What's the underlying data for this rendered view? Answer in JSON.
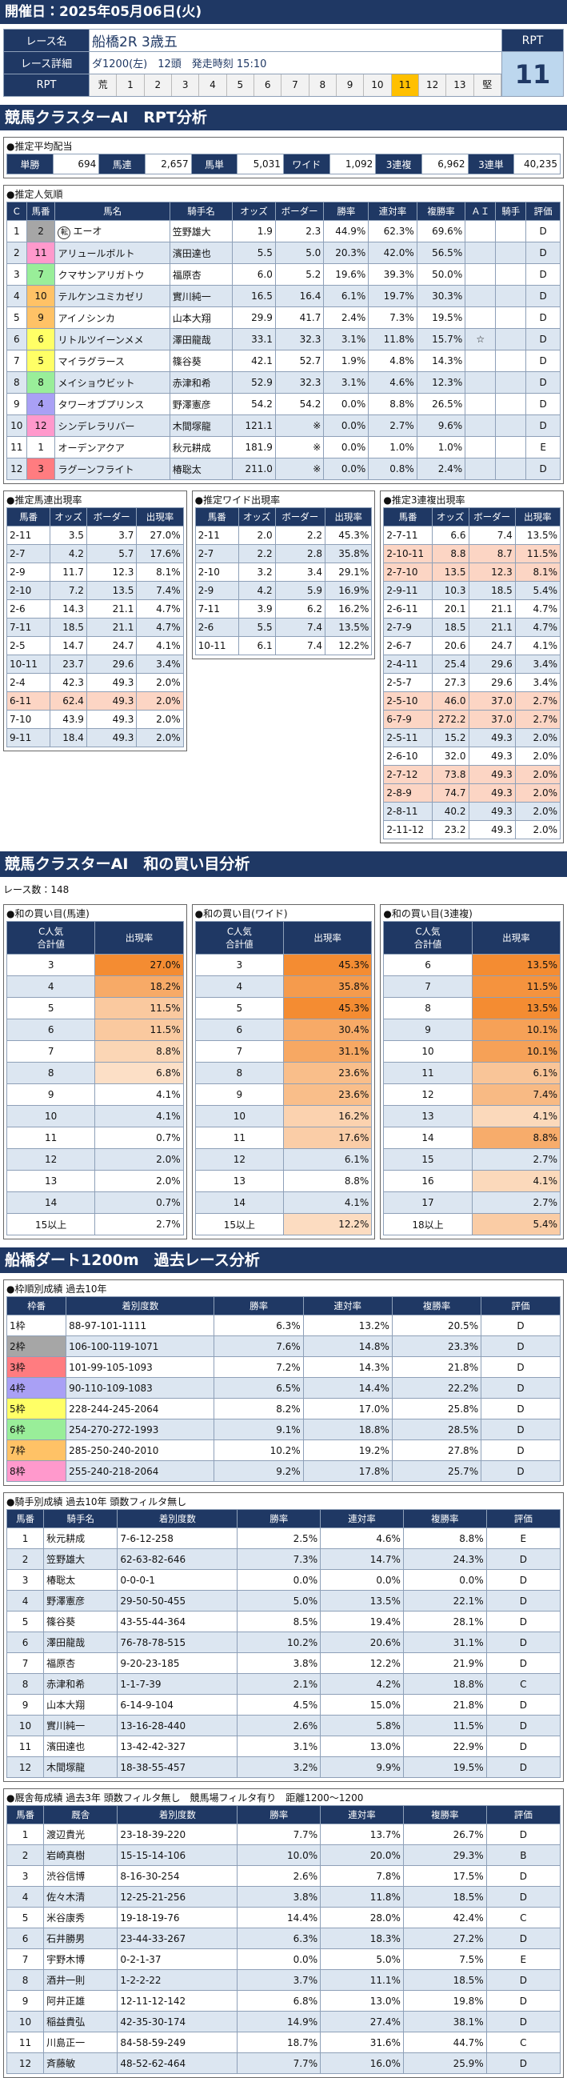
{
  "header": {
    "date": "開催日：2025年05月06日(火)"
  },
  "race": {
    "labels": [
      "レース名",
      "レース詳細",
      "RPT"
    ],
    "name": "船橋2R 3歳五",
    "detail": "ダ1200(左)　12頭　発走時刻 15:10",
    "scale": [
      "荒",
      1,
      2,
      3,
      4,
      5,
      6,
      7,
      8,
      9,
      10,
      11,
      12,
      13,
      "堅"
    ],
    "rpt_title": "RPT",
    "rpt": 11
  },
  "horse_colors": [
    "#ffffff",
    "#a6a6a6",
    "#ff7c80",
    "#a9a0f5",
    "#ffff66",
    "#ffff66",
    "#99ee99",
    "#99ee99",
    "#ffc266",
    "#ffc266",
    "#ff99cc",
    "#ff99cc"
  ],
  "frame_colors": [
    "#ffffff",
    "#a6a6a6",
    "#ff7c80",
    "#a9a0f5",
    "#ffff66",
    "#99ee99",
    "#ffc266",
    "#ff99cc"
  ],
  "rpt_analysis": {
    "title": "競馬クラスターAI　RPT分析",
    "payout": {
      "label": "●推定平均配当",
      "items": [
        {
          "name": "単勝",
          "value": "694"
        },
        {
          "name": "馬連",
          "value": "2,657"
        },
        {
          "name": "馬単",
          "value": "5,031"
        },
        {
          "name": "ワイド",
          "value": "1,092"
        },
        {
          "name": "3連複",
          "value": "6,962"
        },
        {
          "name": "3連単",
          "value": "40,235"
        }
      ]
    },
    "popular": {
      "label": "●推定人気順",
      "columns": [
        "C",
        "馬番",
        "馬名",
        "騎手名",
        "オッズ",
        "ボーダー",
        "勝率",
        "連対率",
        "複勝率",
        "ＡＩ",
        "騎手",
        "評価"
      ],
      "rows": [
        [
          1,
          2,
          {
            "mark": "転",
            "name": "エーオ"
          },
          "笠野雄大",
          "1.9",
          "2.3",
          "44.9%",
          "62.3%",
          "69.6%",
          null,
          null,
          "D"
        ],
        [
          2,
          11,
          "アリュールボルト",
          "濱田達也",
          "5.5",
          "5.0",
          "20.3%",
          "42.0%",
          "56.5%",
          null,
          null,
          "D"
        ],
        [
          3,
          7,
          "クマサンアリガトウ",
          "福原杏",
          "6.0",
          "5.2",
          "19.6%",
          "39.3%",
          "50.0%",
          null,
          null,
          "D"
        ],
        [
          4,
          10,
          "テルケンユミカゼリ",
          "實川純一",
          "16.5",
          "16.4",
          "6.1%",
          "19.7%",
          "30.3%",
          null,
          null,
          "D"
        ],
        [
          5,
          9,
          "アイノシンカ",
          "山本大翔",
          "29.9",
          "41.7",
          "2.4%",
          "7.3%",
          "19.5%",
          null,
          null,
          "D"
        ],
        [
          6,
          6,
          "リトルツイーンメメ",
          "澤田龍哉",
          "33.1",
          "32.3",
          "3.1%",
          "11.8%",
          "15.7%",
          "☆",
          null,
          "D"
        ],
        [
          7,
          5,
          "マイラグラース",
          "篠谷葵",
          "42.1",
          "52.7",
          "1.9%",
          "4.8%",
          "14.3%",
          null,
          null,
          "D"
        ],
        [
          8,
          8,
          "メイショウビット",
          "赤津和希",
          "52.9",
          "32.3",
          "3.1%",
          "4.6%",
          "12.3%",
          null,
          null,
          "D"
        ],
        [
          9,
          4,
          "タワーオブプリンス",
          "野澤憲彦",
          "54.2",
          "54.2",
          "0.0%",
          "8.8%",
          "26.5%",
          null,
          null,
          "D"
        ],
        [
          10,
          12,
          "シンデレラリバー",
          "木間塚龍",
          "121.1",
          "※",
          "0.0%",
          "2.7%",
          "9.6%",
          null,
          null,
          "D"
        ],
        [
          11,
          1,
          "オーデンアクア",
          "秋元耕成",
          "181.9",
          "※",
          "0.0%",
          "1.0%",
          "1.0%",
          null,
          null,
          "E"
        ],
        [
          12,
          3,
          "ラグーンフライト",
          "椿聡太",
          "211.0",
          "※",
          "0.0%",
          "0.8%",
          "2.4%",
          null,
          null,
          "D"
        ]
      ]
    },
    "quinella": {
      "label": "●推定馬連出現率",
      "columns": [
        "馬番",
        "オッズ",
        "ボーダー",
        "出現率"
      ],
      "rows": [
        [
          "2-11",
          "3.5",
          "3.7",
          "27.0%"
        ],
        [
          "2-7",
          "4.2",
          "5.7",
          "17.6%"
        ],
        [
          "2-9",
          "11.7",
          "12.3",
          "8.1%"
        ],
        [
          "2-10",
          "7.2",
          "13.5",
          "7.4%"
        ],
        [
          "2-6",
          "14.3",
          "21.1",
          "4.7%"
        ],
        [
          "7-11",
          "18.5",
          "21.1",
          "4.7%"
        ],
        [
          "2-5",
          "14.7",
          "24.7",
          "4.1%"
        ],
        [
          "10-11",
          "23.7",
          "29.6",
          "3.4%"
        ],
        [
          "2-4",
          "42.3",
          "49.3",
          "2.0%"
        ],
        [
          "6-11",
          "62.4",
          "49.3",
          "2.0%"
        ],
        [
          "7-10",
          "43.9",
          "49.3",
          "2.0%"
        ],
        [
          "9-11",
          "18.4",
          "49.3",
          "2.0%"
        ]
      ]
    },
    "wide": {
      "label": "●推定ワイド出現率",
      "columns": [
        "馬番",
        "オッズ",
        "ボーダー",
        "出現率"
      ],
      "rows": [
        [
          "2-11",
          "2.0",
          "2.2",
          "45.3%"
        ],
        [
          "2-7",
          "2.2",
          "2.8",
          "35.8%"
        ],
        [
          "2-10",
          "3.2",
          "3.4",
          "29.1%"
        ],
        [
          "2-9",
          "4.2",
          "5.9",
          "16.9%"
        ],
        [
          "7-11",
          "3.9",
          "6.2",
          "16.2%"
        ],
        [
          "2-6",
          "5.5",
          "7.4",
          "13.5%"
        ],
        [
          "10-11",
          "6.1",
          "7.4",
          "12.2%"
        ]
      ]
    },
    "trio": {
      "label": "●推定3連複出現率",
      "columns": [
        "馬番",
        "オッズ",
        "ボーダー",
        "出現率"
      ],
      "rows": [
        [
          "2-7-11",
          "6.6",
          "7.4",
          "13.5%"
        ],
        [
          "2-10-11",
          "8.8",
          "8.7",
          "11.5%"
        ],
        [
          "2-7-10",
          "13.5",
          "12.3",
          "8.1%"
        ],
        [
          "2-9-11",
          "10.3",
          "18.5",
          "5.4%"
        ],
        [
          "2-6-11",
          "20.1",
          "21.1",
          "4.7%"
        ],
        [
          "2-7-9",
          "18.5",
          "21.1",
          "4.7%"
        ],
        [
          "2-6-7",
          "20.6",
          "24.7",
          "4.1%"
        ],
        [
          "2-4-11",
          "25.4",
          "29.6",
          "3.4%"
        ],
        [
          "2-5-7",
          "27.3",
          "29.6",
          "3.4%"
        ],
        [
          "2-5-10",
          "46.0",
          "37.0",
          "2.7%"
        ],
        [
          "6-7-9",
          "272.2",
          "37.0",
          "2.7%"
        ],
        [
          "2-5-11",
          "15.2",
          "49.3",
          "2.0%"
        ],
        [
          "2-6-10",
          "32.0",
          "49.3",
          "2.0%"
        ],
        [
          "2-7-12",
          "73.8",
          "49.3",
          "2.0%"
        ],
        [
          "2-8-9",
          "74.7",
          "49.3",
          "2.0%"
        ],
        [
          "2-8-11",
          "40.2",
          "49.3",
          "2.0%"
        ],
        [
          "2-11-12",
          "23.2",
          "49.3",
          "2.0%"
        ]
      ]
    }
  },
  "sum_analysis": {
    "title": "競馬クラスターAI　和の買い目分析",
    "race_count": "レース数：148",
    "tables": [
      {
        "label": "●和の買い目(馬連)",
        "columns": [
          [
            "C人気",
            "合計値"
          ],
          "出現率"
        ],
        "rows": [
          [
            3,
            "27.0%"
          ],
          [
            4,
            "18.2%"
          ],
          [
            5,
            "11.5%"
          ],
          [
            6,
            "11.5%"
          ],
          [
            7,
            "8.8%"
          ],
          [
            8,
            "6.8%"
          ],
          [
            9,
            "4.1%"
          ],
          [
            10,
            "4.1%"
          ],
          [
            11,
            "0.7%"
          ],
          [
            12,
            "2.0%"
          ],
          [
            13,
            "2.0%"
          ],
          [
            14,
            "0.7%"
          ],
          [
            "15以上",
            "2.7%"
          ]
        ]
      },
      {
        "label": "●和の買い目(ワイド)",
        "columns": [
          [
            "C人気",
            "合計値"
          ],
          "出現率"
        ],
        "rows": [
          [
            3,
            "45.3%"
          ],
          [
            4,
            "35.8%"
          ],
          [
            5,
            "45.3%"
          ],
          [
            6,
            "30.4%"
          ],
          [
            7,
            "31.1%"
          ],
          [
            8,
            "23.6%"
          ],
          [
            9,
            "23.6%"
          ],
          [
            10,
            "16.2%"
          ],
          [
            11,
            "17.6%"
          ],
          [
            12,
            "6.1%"
          ],
          [
            13,
            "8.8%"
          ],
          [
            14,
            "4.1%"
          ],
          [
            "15以上",
            "12.2%"
          ]
        ]
      },
      {
        "label": "●和の買い目(3連複)",
        "columns": [
          [
            "C人気",
            "合計値"
          ],
          "出現率"
        ],
        "rows": [
          [
            6,
            "13.5%"
          ],
          [
            7,
            "11.5%"
          ],
          [
            8,
            "13.5%"
          ],
          [
            9,
            "10.1%"
          ],
          [
            10,
            "10.1%"
          ],
          [
            11,
            "6.1%"
          ],
          [
            12,
            "7.4%"
          ],
          [
            13,
            "4.1%"
          ],
          [
            14,
            "8.8%"
          ],
          [
            15,
            "2.7%"
          ],
          [
            16,
            "4.1%"
          ],
          [
            17,
            "2.7%"
          ],
          [
            "18以上",
            "5.4%"
          ]
        ]
      }
    ]
  },
  "course_analysis": {
    "title": "船橋ダート1200m　過去レース分析",
    "frame": {
      "label": "●枠順別成績 過去10年",
      "columns": [
        "枠番",
        "着別度数",
        "勝率",
        "連対率",
        "複勝率",
        "評価"
      ],
      "rows": [
        [
          "1枠",
          "88-97-101-1111",
          "6.3%",
          "13.2%",
          "20.5%",
          "D"
        ],
        [
          "2枠",
          "106-100-119-1071",
          "7.6%",
          "14.8%",
          "23.3%",
          "D"
        ],
        [
          "3枠",
          "101-99-105-1093",
          "7.2%",
          "14.3%",
          "21.8%",
          "D"
        ],
        [
          "4枠",
          "90-110-109-1083",
          "6.5%",
          "14.4%",
          "22.2%",
          "D"
        ],
        [
          "5枠",
          "228-244-245-2064",
          "8.2%",
          "17.0%",
          "25.8%",
          "D"
        ],
        [
          "6枠",
          "254-270-272-1993",
          "9.1%",
          "18.8%",
          "28.5%",
          "D"
        ],
        [
          "7枠",
          "285-250-240-2010",
          "10.2%",
          "19.2%",
          "27.8%",
          "D"
        ],
        [
          "8枠",
          "255-240-218-2064",
          "9.2%",
          "17.8%",
          "25.7%",
          "D"
        ]
      ]
    },
    "jockey": {
      "label": "●騎手別成績 過去10年 頭数フィルタ無し",
      "columns": [
        "馬番",
        "騎手名",
        "着別度数",
        "勝率",
        "連対率",
        "複勝率",
        "評価"
      ],
      "rows": [
        [
          1,
          "秋元耕成",
          "7-6-12-258",
          "2.5%",
          "4.6%",
          "8.8%",
          "E"
        ],
        [
          2,
          "笠野雄大",
          "62-63-82-646",
          "7.3%",
          "14.7%",
          "24.3%",
          "D"
        ],
        [
          3,
          "椿聡太",
          "0-0-0-1",
          "0.0%",
          "0.0%",
          "0.0%",
          "D"
        ],
        [
          4,
          "野澤憲彦",
          "29-50-50-455",
          "5.0%",
          "13.5%",
          "22.1%",
          "D"
        ],
        [
          5,
          "篠谷葵",
          "43-55-44-364",
          "8.5%",
          "19.4%",
          "28.1%",
          "D"
        ],
        [
          6,
          "澤田龍哉",
          "76-78-78-515",
          "10.2%",
          "20.6%",
          "31.1%",
          "D"
        ],
        [
          7,
          "福原杏",
          "9-20-23-185",
          "3.8%",
          "12.2%",
          "21.9%",
          "D"
        ],
        [
          8,
          "赤津和希",
          "1-1-7-39",
          "2.1%",
          "4.2%",
          "18.8%",
          "C"
        ],
        [
          9,
          "山本大翔",
          "6-14-9-104",
          "4.5%",
          "15.0%",
          "21.8%",
          "D"
        ],
        [
          10,
          "實川純一",
          "13-16-28-440",
          "2.6%",
          "5.8%",
          "11.5%",
          "D"
        ],
        [
          11,
          "濱田達也",
          "13-42-42-327",
          "3.1%",
          "13.0%",
          "22.9%",
          "D"
        ],
        [
          12,
          "木間塚龍",
          "18-38-55-457",
          "3.2%",
          "9.9%",
          "19.5%",
          "D"
        ]
      ]
    },
    "stable": {
      "label": "●厩舎毎成績 過去3年 頭数フィルタ無し　競馬場フィルタ有り　距離1200〜1200",
      "columns": [
        "馬番",
        "厩舎",
        "着別度数",
        "勝率",
        "連対率",
        "複勝率",
        "評価"
      ],
      "rows": [
        [
          1,
          "渡辺貴光",
          "23-18-39-220",
          "7.7%",
          "13.7%",
          "26.7%",
          "D"
        ],
        [
          2,
          "岩崎真樹",
          "15-15-14-106",
          "10.0%",
          "20.0%",
          "29.3%",
          "B"
        ],
        [
          3,
          "渋谷信博",
          "8-16-30-254",
          "2.6%",
          "7.8%",
          "17.5%",
          "D"
        ],
        [
          4,
          "佐々木清",
          "12-25-21-256",
          "3.8%",
          "11.8%",
          "18.5%",
          "D"
        ],
        [
          5,
          "米谷康秀",
          "19-18-19-76",
          "14.4%",
          "28.0%",
          "42.4%",
          "C"
        ],
        [
          6,
          "石井勝男",
          "23-44-33-267",
          "6.3%",
          "18.3%",
          "27.2%",
          "D"
        ],
        [
          7,
          "宇野木博",
          "0-2-1-37",
          "0.0%",
          "5.0%",
          "7.5%",
          "E"
        ],
        [
          8,
          "酒井一則",
          "1-2-2-22",
          "3.7%",
          "11.1%",
          "18.5%",
          "D"
        ],
        [
          9,
          "阿井正雄",
          "12-11-12-142",
          "6.8%",
          "13.0%",
          "19.8%",
          "D"
        ],
        [
          10,
          "稲益貴弘",
          "42-35-30-174",
          "14.9%",
          "27.4%",
          "38.1%",
          "D"
        ],
        [
          11,
          "川島正一",
          "84-58-59-249",
          "18.7%",
          "31.6%",
          "44.7%",
          "C"
        ],
        [
          12,
          "斉藤敏",
          "48-52-62-464",
          "7.7%",
          "16.0%",
          "25.9%",
          "D"
        ]
      ]
    }
  }
}
